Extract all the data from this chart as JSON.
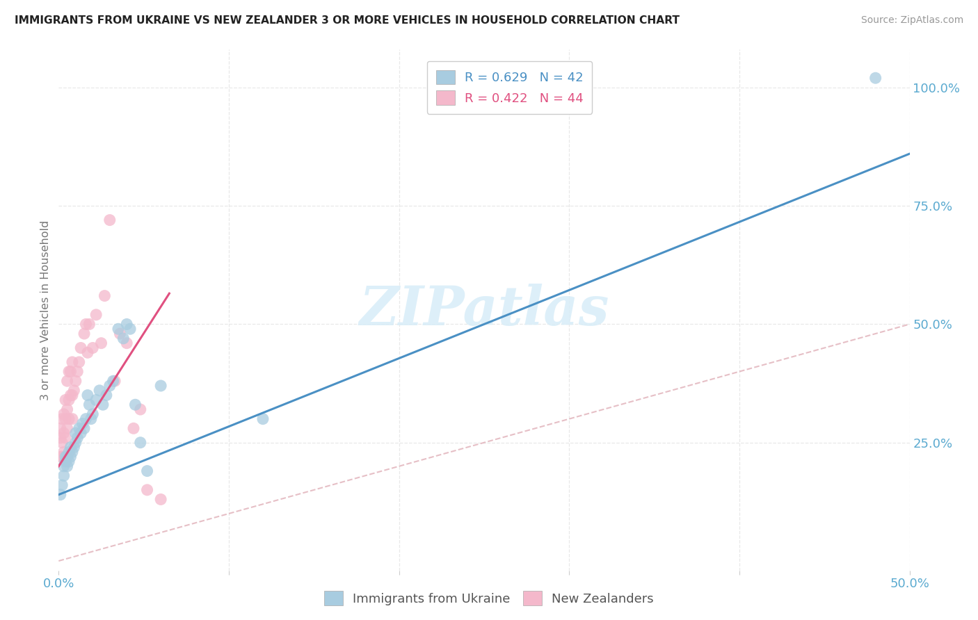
{
  "title": "IMMIGRANTS FROM UKRAINE VS NEW ZEALANDER 3 OR MORE VEHICLES IN HOUSEHOLD CORRELATION CHART",
  "source": "Source: ZipAtlas.com",
  "ylabel": "3 or more Vehicles in Household",
  "xlim": [
    0.0,
    0.5
  ],
  "ylim": [
    -0.02,
    1.08
  ],
  "xtick_positions": [
    0.0,
    0.1,
    0.2,
    0.3,
    0.4,
    0.5
  ],
  "xticklabels": [
    "0.0%",
    "",
    "",
    "",
    "",
    "50.0%"
  ],
  "ytick_right_positions": [
    0.25,
    0.5,
    0.75,
    1.0
  ],
  "yticklabels_right": [
    "25.0%",
    "50.0%",
    "75.0%",
    "100.0%"
  ],
  "legend1_label": "R = 0.629   N = 42",
  "legend2_label": "R = 0.422   N = 44",
  "legend_bottom_label1": "Immigrants from Ukraine",
  "legend_bottom_label2": "New Zealanders",
  "blue_scatter_color": "#a8cce0",
  "pink_scatter_color": "#f4b8cb",
  "blue_line_color": "#4a90c4",
  "pink_line_color": "#e05080",
  "ref_line_color": "#e0b0b8",
  "axis_tick_color": "#5baad0",
  "right_axis_color": "#5baad0",
  "watermark": "ZIPatlas",
  "watermark_color": "#d8edf8",
  "grid_color": "#e8e8e8",
  "background_color": "#ffffff",
  "blue_line_x0": 0.0,
  "blue_line_y0": 0.14,
  "blue_line_x1": 0.5,
  "blue_line_y1": 0.86,
  "pink_line_x0": 0.0,
  "pink_line_y0": 0.2,
  "pink_line_x1": 0.065,
  "pink_line_y1": 0.565,
  "ukraine_x": [
    0.001,
    0.002,
    0.003,
    0.003,
    0.004,
    0.004,
    0.005,
    0.005,
    0.006,
    0.006,
    0.007,
    0.007,
    0.008,
    0.009,
    0.01,
    0.01,
    0.011,
    0.012,
    0.013,
    0.014,
    0.015,
    0.016,
    0.017,
    0.018,
    0.019,
    0.02,
    0.022,
    0.024,
    0.026,
    0.028,
    0.03,
    0.032,
    0.035,
    0.038,
    0.04,
    0.042,
    0.045,
    0.048,
    0.052,
    0.06,
    0.12,
    0.48
  ],
  "ukraine_y": [
    0.14,
    0.16,
    0.18,
    0.2,
    0.21,
    0.22,
    0.2,
    0.22,
    0.21,
    0.23,
    0.22,
    0.24,
    0.23,
    0.24,
    0.25,
    0.27,
    0.26,
    0.28,
    0.27,
    0.29,
    0.28,
    0.3,
    0.35,
    0.33,
    0.3,
    0.31,
    0.34,
    0.36,
    0.33,
    0.35,
    0.37,
    0.38,
    0.49,
    0.47,
    0.5,
    0.49,
    0.33,
    0.25,
    0.19,
    0.37,
    0.3,
    1.02
  ],
  "nz_x": [
    0.001,
    0.001,
    0.001,
    0.002,
    0.002,
    0.002,
    0.003,
    0.003,
    0.003,
    0.004,
    0.004,
    0.004,
    0.005,
    0.005,
    0.005,
    0.006,
    0.006,
    0.006,
    0.007,
    0.007,
    0.008,
    0.008,
    0.008,
    0.009,
    0.01,
    0.011,
    0.012,
    0.013,
    0.015,
    0.016,
    0.017,
    0.018,
    0.02,
    0.022,
    0.025,
    0.027,
    0.03,
    0.033,
    0.036,
    0.04,
    0.044,
    0.048,
    0.052,
    0.06
  ],
  "nz_y": [
    0.22,
    0.26,
    0.28,
    0.22,
    0.25,
    0.3,
    0.23,
    0.27,
    0.31,
    0.26,
    0.3,
    0.34,
    0.28,
    0.32,
    0.38,
    0.3,
    0.34,
    0.4,
    0.35,
    0.4,
    0.3,
    0.35,
    0.42,
    0.36,
    0.38,
    0.4,
    0.42,
    0.45,
    0.48,
    0.5,
    0.44,
    0.5,
    0.45,
    0.52,
    0.46,
    0.56,
    0.72,
    0.38,
    0.48,
    0.46,
    0.28,
    0.32,
    0.15,
    0.13
  ]
}
